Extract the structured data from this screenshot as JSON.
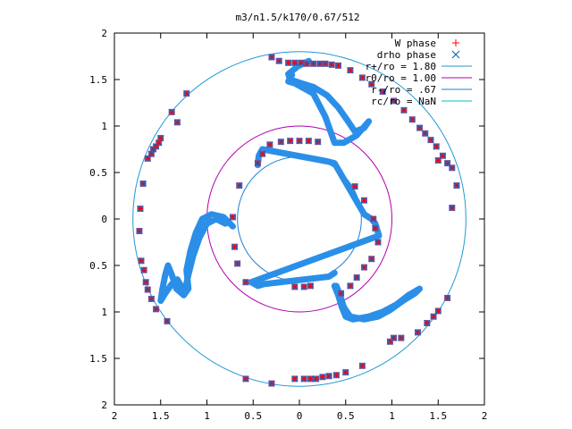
{
  "chart_data": {
    "type": "scatter",
    "title": "m3/n1.5/k170/0.67/512",
    "xlim": [
      -2,
      2
    ],
    "ylim": [
      -2,
      2
    ],
    "x_ticks": [
      -2,
      -1.5,
      -1,
      -0.5,
      0,
      0.5,
      1,
      1.5,
      2
    ],
    "y_ticks": [
      -2,
      -1.5,
      -1,
      -0.5,
      0,
      0.5,
      1,
      1.5,
      2
    ],
    "x_tick_labels": [
      "2",
      "1.5",
      "1",
      "0.5",
      "0",
      "0.5",
      "1",
      "1.5",
      "2"
    ],
    "y_tick_labels": [
      "2",
      "1.5",
      "1",
      "0.5",
      "0",
      "0.5",
      "1",
      "1.5",
      "2"
    ],
    "grid": false,
    "legend_position": "top-right",
    "series": [
      {
        "name": "W phase",
        "marker": "plus",
        "color": "#ff0000",
        "points": [
          [
            -0.3,
            1.74
          ],
          [
            -0.22,
            1.7
          ],
          [
            -0.12,
            1.68
          ],
          [
            -0.05,
            1.68
          ],
          [
            0.02,
            1.68
          ],
          [
            0.08,
            1.67
          ],
          [
            0.15,
            1.67
          ],
          [
            0.22,
            1.67
          ],
          [
            0.28,
            1.67
          ],
          [
            0.35,
            1.66
          ],
          [
            0.42,
            1.65
          ],
          [
            -1.22,
            1.35
          ],
          [
            -1.38,
            1.15
          ],
          [
            -1.32,
            1.04
          ],
          [
            -1.5,
            0.87
          ],
          [
            -1.52,
            0.82
          ],
          [
            -1.55,
            0.78
          ],
          [
            -1.58,
            0.75
          ],
          [
            -1.6,
            0.7
          ],
          [
            -1.64,
            0.65
          ],
          [
            -1.69,
            0.38
          ],
          [
            -1.72,
            0.11
          ],
          [
            -1.73,
            -0.13
          ],
          [
            -1.71,
            -0.45
          ],
          [
            -1.68,
            -0.55
          ],
          [
            -1.66,
            -0.68
          ],
          [
            -1.64,
            -0.76
          ],
          [
            -1.6,
            -0.86
          ],
          [
            -1.55,
            -0.97
          ],
          [
            -1.43,
            -1.1
          ],
          [
            0.55,
            1.6
          ],
          [
            0.68,
            1.52
          ],
          [
            0.78,
            1.45
          ],
          [
            0.9,
            1.37
          ],
          [
            1.02,
            1.27
          ],
          [
            1.13,
            1.17
          ],
          [
            1.22,
            1.07
          ],
          [
            1.3,
            0.98
          ],
          [
            1.36,
            0.92
          ],
          [
            1.42,
            0.85
          ],
          [
            1.48,
            0.78
          ],
          [
            1.55,
            0.68
          ],
          [
            1.6,
            0.6
          ],
          [
            1.65,
            0.55
          ],
          [
            1.7,
            0.36
          ],
          [
            -0.45,
            0.6
          ],
          [
            -0.4,
            0.7
          ],
          [
            -0.32,
            0.8
          ],
          [
            -0.2,
            0.83
          ],
          [
            -0.1,
            0.84
          ],
          [
            0.0,
            0.84
          ],
          [
            0.1,
            0.84
          ],
          [
            0.2,
            0.83
          ],
          [
            -0.65,
            0.36
          ],
          [
            -0.72,
            0.02
          ],
          [
            -0.7,
            -0.3
          ],
          [
            -0.67,
            -0.48
          ],
          [
            -0.58,
            -0.68
          ],
          [
            -0.05,
            -0.73
          ],
          [
            0.05,
            -0.73
          ],
          [
            0.12,
            -0.72
          ],
          [
            0.6,
            0.35
          ],
          [
            0.7,
            0.2
          ],
          [
            0.8,
            0.0
          ],
          [
            0.82,
            -0.1
          ],
          [
            0.85,
            -0.25
          ],
          [
            0.78,
            -0.43
          ],
          [
            0.7,
            -0.52
          ],
          [
            0.62,
            -0.63
          ],
          [
            0.55,
            -0.72
          ],
          [
            0.45,
            -0.8
          ],
          [
            1.5,
            0.63
          ],
          [
            1.65,
            0.12
          ],
          [
            1.6,
            -0.85
          ],
          [
            1.5,
            -0.99
          ],
          [
            1.45,
            -1.05
          ],
          [
            1.38,
            -1.12
          ],
          [
            1.28,
            -1.22
          ],
          [
            1.1,
            -1.28
          ],
          [
            1.02,
            -1.28
          ],
          [
            0.98,
            -1.32
          ],
          [
            -0.58,
            -1.72
          ],
          [
            -0.3,
            -1.77
          ],
          [
            -0.05,
            -1.72
          ],
          [
            0.05,
            -1.72
          ],
          [
            0.12,
            -1.72
          ],
          [
            0.18,
            -1.72
          ],
          [
            0.25,
            -1.7
          ],
          [
            0.32,
            -1.69
          ],
          [
            0.4,
            -1.68
          ],
          [
            0.5,
            -1.65
          ],
          [
            0.68,
            -1.58
          ]
        ]
      },
      {
        "name": "drho phase",
        "marker": "cross",
        "color": "#0060ad",
        "points": [
          [
            -0.3,
            1.74
          ],
          [
            -0.22,
            1.7
          ],
          [
            -0.12,
            1.68
          ],
          [
            -0.05,
            1.68
          ],
          [
            0.02,
            1.68
          ],
          [
            0.08,
            1.67
          ],
          [
            0.15,
            1.67
          ],
          [
            0.22,
            1.67
          ],
          [
            0.28,
            1.67
          ],
          [
            0.35,
            1.66
          ],
          [
            0.42,
            1.65
          ],
          [
            -1.22,
            1.35
          ],
          [
            -1.38,
            1.15
          ],
          [
            -1.32,
            1.04
          ],
          [
            -1.5,
            0.87
          ],
          [
            -1.52,
            0.82
          ],
          [
            -1.55,
            0.78
          ],
          [
            -1.58,
            0.75
          ],
          [
            -1.6,
            0.7
          ],
          [
            -1.64,
            0.65
          ],
          [
            -1.69,
            0.38
          ],
          [
            -1.72,
            0.11
          ],
          [
            -1.73,
            -0.13
          ],
          [
            -1.71,
            -0.45
          ],
          [
            -1.68,
            -0.55
          ],
          [
            -1.66,
            -0.68
          ],
          [
            -1.64,
            -0.76
          ],
          [
            -1.6,
            -0.86
          ],
          [
            -1.55,
            -0.97
          ],
          [
            -1.43,
            -1.1
          ],
          [
            0.55,
            1.6
          ],
          [
            0.68,
            1.52
          ],
          [
            0.78,
            1.45
          ],
          [
            0.9,
            1.37
          ],
          [
            1.02,
            1.27
          ],
          [
            1.13,
            1.17
          ],
          [
            1.22,
            1.07
          ],
          [
            1.3,
            0.98
          ],
          [
            1.36,
            0.92
          ],
          [
            1.42,
            0.85
          ],
          [
            1.48,
            0.78
          ],
          [
            1.55,
            0.68
          ],
          [
            1.6,
            0.6
          ],
          [
            1.65,
            0.55
          ],
          [
            1.7,
            0.36
          ],
          [
            -0.45,
            0.6
          ],
          [
            -0.4,
            0.7
          ],
          [
            -0.32,
            0.8
          ],
          [
            -0.2,
            0.83
          ],
          [
            -0.1,
            0.84
          ],
          [
            0.0,
            0.84
          ],
          [
            0.1,
            0.84
          ],
          [
            0.2,
            0.83
          ],
          [
            -0.65,
            0.36
          ],
          [
            -0.72,
            0.02
          ],
          [
            -0.7,
            -0.3
          ],
          [
            -0.67,
            -0.48
          ],
          [
            -0.58,
            -0.68
          ],
          [
            -0.05,
            -0.73
          ],
          [
            0.05,
            -0.73
          ],
          [
            0.12,
            -0.72
          ],
          [
            0.6,
            0.35
          ],
          [
            0.7,
            0.2
          ],
          [
            0.8,
            0.0
          ],
          [
            0.82,
            -0.1
          ],
          [
            0.85,
            -0.25
          ],
          [
            0.78,
            -0.43
          ],
          [
            0.7,
            -0.52
          ],
          [
            0.62,
            -0.63
          ],
          [
            0.55,
            -0.72
          ],
          [
            0.45,
            -0.8
          ],
          [
            1.5,
            0.63
          ],
          [
            1.65,
            0.12
          ],
          [
            1.6,
            -0.85
          ],
          [
            1.5,
            -0.99
          ],
          [
            1.45,
            -1.05
          ],
          [
            1.38,
            -1.12
          ],
          [
            1.28,
            -1.22
          ],
          [
            1.1,
            -1.28
          ],
          [
            1.02,
            -1.28
          ],
          [
            0.98,
            -1.32
          ],
          [
            -0.58,
            -1.72
          ],
          [
            -0.3,
            -1.77
          ],
          [
            -0.05,
            -1.72
          ],
          [
            0.05,
            -1.72
          ],
          [
            0.12,
            -1.72
          ],
          [
            0.18,
            -1.72
          ],
          [
            0.25,
            -1.7
          ],
          [
            0.32,
            -1.69
          ],
          [
            0.4,
            -1.68
          ],
          [
            0.5,
            -1.65
          ],
          [
            0.68,
            -1.58
          ]
        ]
      }
    ],
    "dense_curves": [
      {
        "name": "W phase / drho phase dense band (top S)",
        "color": "#2b8fe8",
        "points": [
          [
            0.1,
            1.7
          ],
          [
            -0.02,
            1.64
          ],
          [
            -0.12,
            1.56
          ],
          [
            -0.1,
            1.5
          ],
          [
            0.02,
            1.46
          ],
          [
            0.15,
            1.42
          ],
          [
            0.3,
            1.33
          ],
          [
            0.42,
            1.2
          ],
          [
            0.52,
            1.06
          ],
          [
            0.6,
            0.94
          ],
          [
            0.7,
            0.98
          ],
          [
            0.75,
            1.05
          ],
          [
            0.62,
            0.9
          ],
          [
            0.48,
            0.82
          ],
          [
            0.38,
            0.82
          ],
          [
            0.28,
            1.1
          ],
          [
            0.15,
            1.35
          ],
          [
            -0.05,
            1.46
          ],
          [
            -0.12,
            1.48
          ],
          [
            -0.08,
            1.55
          ]
        ]
      },
      {
        "name": "W phase / drho phase dense band (left S)",
        "color": "#2b8fe8",
        "points": [
          [
            -0.72,
            -0.08
          ],
          [
            -0.82,
            0.02
          ],
          [
            -0.95,
            0.05
          ],
          [
            -1.05,
            0.0
          ],
          [
            -1.12,
            -0.15
          ],
          [
            -1.18,
            -0.35
          ],
          [
            -1.22,
            -0.55
          ],
          [
            -1.2,
            -0.75
          ],
          [
            -1.25,
            -0.82
          ],
          [
            -1.33,
            -0.75
          ],
          [
            -1.38,
            -0.6
          ],
          [
            -1.42,
            -0.5
          ],
          [
            -1.45,
            -0.6
          ],
          [
            -1.48,
            -0.75
          ],
          [
            -1.5,
            -0.88
          ],
          [
            -1.45,
            -0.8
          ],
          [
            -1.38,
            -0.7
          ],
          [
            -1.32,
            -0.65
          ],
          [
            -1.28,
            -0.72
          ],
          [
            -1.24,
            -0.78
          ],
          [
            -1.2,
            -0.6
          ],
          [
            -1.15,
            -0.4
          ],
          [
            -1.08,
            -0.2
          ],
          [
            -1.0,
            -0.05
          ],
          [
            -0.9,
            0.0
          ],
          [
            -0.8,
            -0.05
          ]
        ]
      },
      {
        "name": "W phase / drho phase dense band (lower right)",
        "color": "#2b8fe8",
        "points": [
          [
            0.38,
            -0.72
          ],
          [
            0.42,
            -0.82
          ],
          [
            0.46,
            -0.95
          ],
          [
            0.5,
            -1.05
          ],
          [
            0.58,
            -1.08
          ],
          [
            0.75,
            -1.05
          ],
          [
            0.9,
            -1.0
          ],
          [
            1.05,
            -0.92
          ],
          [
            1.18,
            -0.82
          ],
          [
            1.3,
            -0.75
          ],
          [
            1.25,
            -0.8
          ],
          [
            1.12,
            -0.88
          ],
          [
            0.98,
            -0.98
          ],
          [
            0.85,
            -1.05
          ],
          [
            0.7,
            -1.08
          ],
          [
            0.55,
            -1.05
          ],
          [
            0.48,
            -0.95
          ],
          [
            0.44,
            -0.82
          ],
          [
            0.4,
            -0.72
          ]
        ]
      },
      {
        "name": "W phase / drho phase dense band (inner)",
        "color": "#2b8fe8",
        "points": [
          [
            -0.45,
            0.58
          ],
          [
            -0.44,
            0.68
          ],
          [
            -0.4,
            0.75
          ],
          [
            0.3,
            0.62
          ],
          [
            0.38,
            0.6
          ],
          [
            0.7,
            0.05
          ],
          [
            0.78,
            0.0
          ],
          [
            0.82,
            -0.05
          ],
          [
            0.86,
            -0.18
          ],
          [
            -0.52,
            -0.68
          ],
          [
            -0.45,
            -0.72
          ],
          [
            -0.38,
            -0.7
          ],
          [
            0.32,
            -0.62
          ],
          [
            0.38,
            -0.58
          ]
        ]
      }
    ],
    "circles": [
      {
        "label": "r+/ro = 1.80",
        "radius": 1.8,
        "color": "#1f9ad6"
      },
      {
        "label": "r0/ro = 1.00",
        "radius": 1.0,
        "color": "#b000b0"
      },
      {
        "label": "r-/ro = .67",
        "radius": 0.67,
        "color": "#1f7fd6"
      },
      {
        "label": "rc/ro = NaN",
        "radius": 0,
        "color": "#00c0c0"
      }
    ]
  }
}
